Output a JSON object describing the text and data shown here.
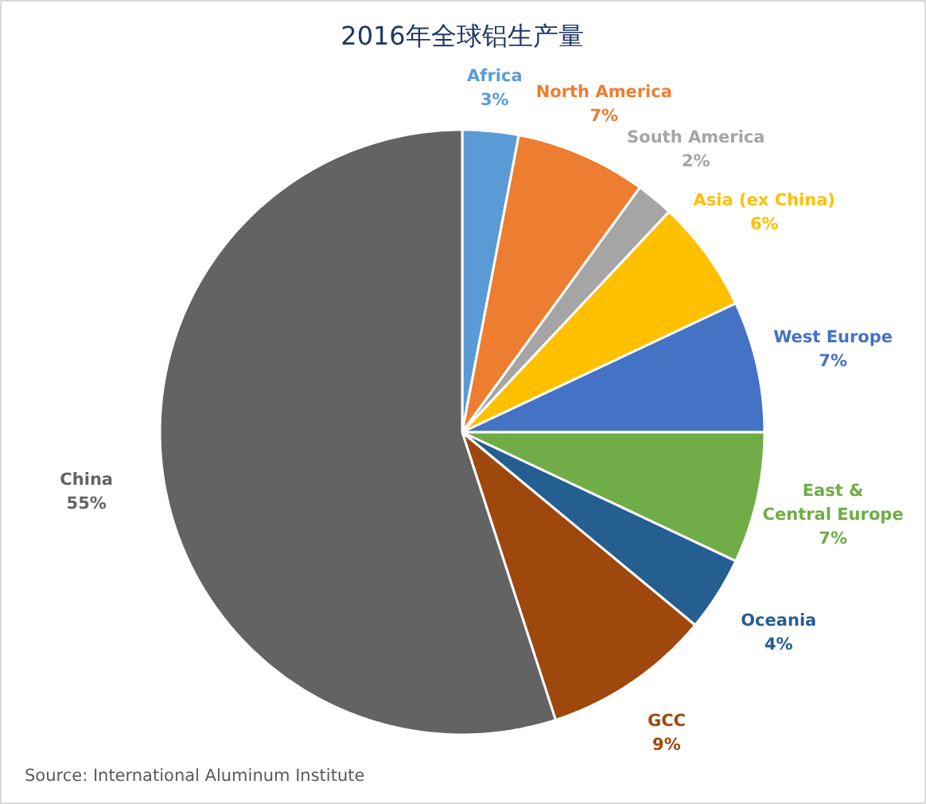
{
  "chart_data": {
    "type": "pie",
    "title": "2016年全球铝生产量",
    "categories": [
      "Africa",
      "North America",
      "South America",
      "Asia (ex China)",
      "West Europe",
      "East & Central Europe",
      "Oceania",
      "GCC",
      "China"
    ],
    "values": [
      3,
      7,
      2,
      6,
      7,
      7,
      4,
      9,
      55
    ],
    "colors": [
      "#5b9bd5",
      "#ed7d31",
      "#a5a5a5",
      "#ffc000",
      "#4472c4",
      "#70ad47",
      "#255e91",
      "#9e480e",
      "#636363"
    ],
    "value_labels": [
      "3%",
      "7%",
      "2%",
      "6%",
      "7%",
      "7%",
      "4%",
      "9%",
      "55%"
    ],
    "annotations": [
      "Source: International Aluminum Institute"
    ]
  }
}
